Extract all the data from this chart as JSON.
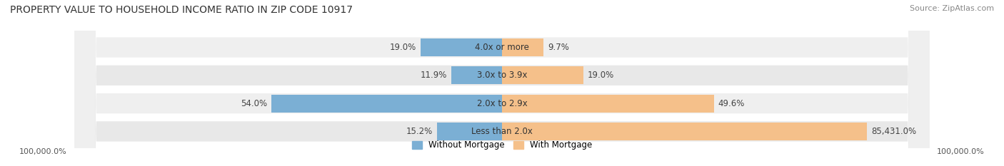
{
  "title": "PROPERTY VALUE TO HOUSEHOLD INCOME RATIO IN ZIP CODE 10917",
  "source": "Source: ZipAtlas.com",
  "categories": [
    "Less than 2.0x",
    "2.0x to 2.9x",
    "3.0x to 3.9x",
    "4.0x or more"
  ],
  "without_mortgage": [
    15.2,
    54.0,
    11.9,
    19.0
  ],
  "with_mortgage_pct": [
    85431.0,
    49.6,
    19.0,
    9.7
  ],
  "without_mortgage_label": [
    "15.2%",
    "54.0%",
    "11.9%",
    "19.0%"
  ],
  "with_mortgage_label": [
    "85,431.0%",
    "49.6%",
    "19.0%",
    "9.7%"
  ],
  "color_without": "#7bafd4",
  "color_with": "#f5c08a",
  "bg_row_even": "#f0f0f0",
  "bg_row_odd": "#e8e8e8",
  "xlim": 100000,
  "xlabel_left": "100,000.0%",
  "xlabel_right": "100,000.0%",
  "legend_without": "Without Mortgage",
  "legend_with": "With Mortgage",
  "title_fontsize": 10,
  "source_fontsize": 8,
  "label_fontsize": 8.5,
  "axis_fontsize": 8
}
